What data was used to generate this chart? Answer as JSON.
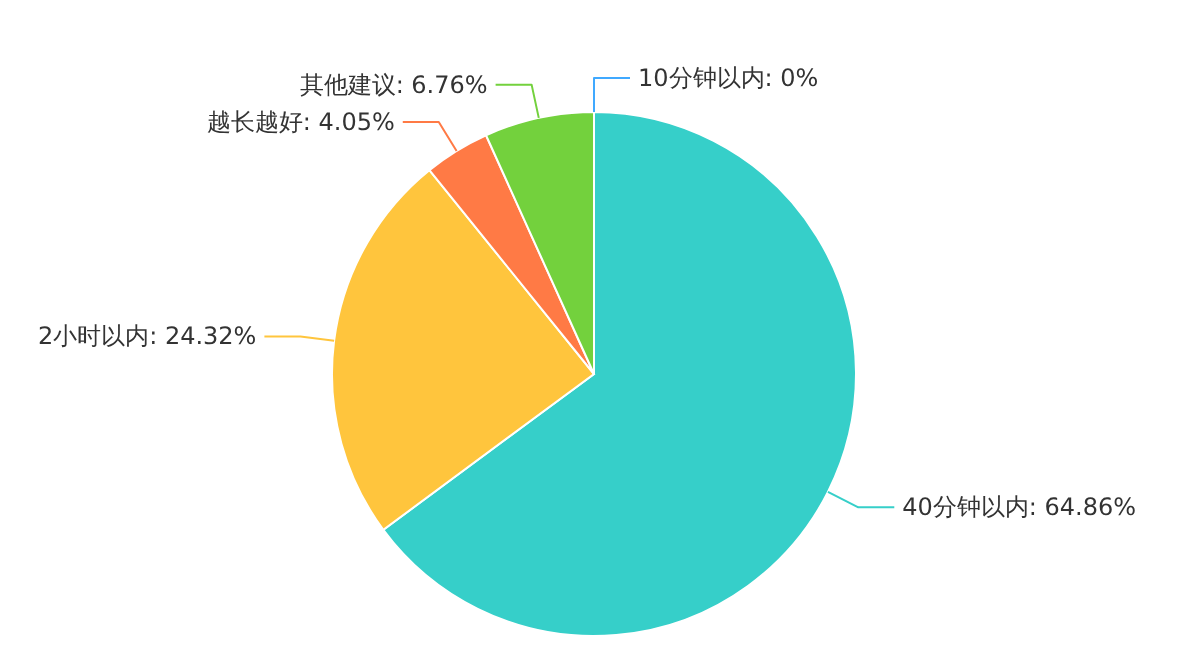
{
  "chart_data": {
    "type": "pie",
    "categories": [
      "10分钟以内",
      "40分钟以内",
      "2小时以内",
      "越长越好",
      "其他建议"
    ],
    "values": [
      0,
      64.86,
      24.32,
      4.05,
      6.76
    ],
    "colors": [
      "#40a9ff",
      "#36cfc9",
      "#ffc53d",
      "#ff7a45",
      "#73d13d"
    ],
    "value_labels": [
      ": 0%",
      ": 64.86%",
      ": 24.32%",
      ": 4.05%",
      ": 6.76%"
    ]
  }
}
